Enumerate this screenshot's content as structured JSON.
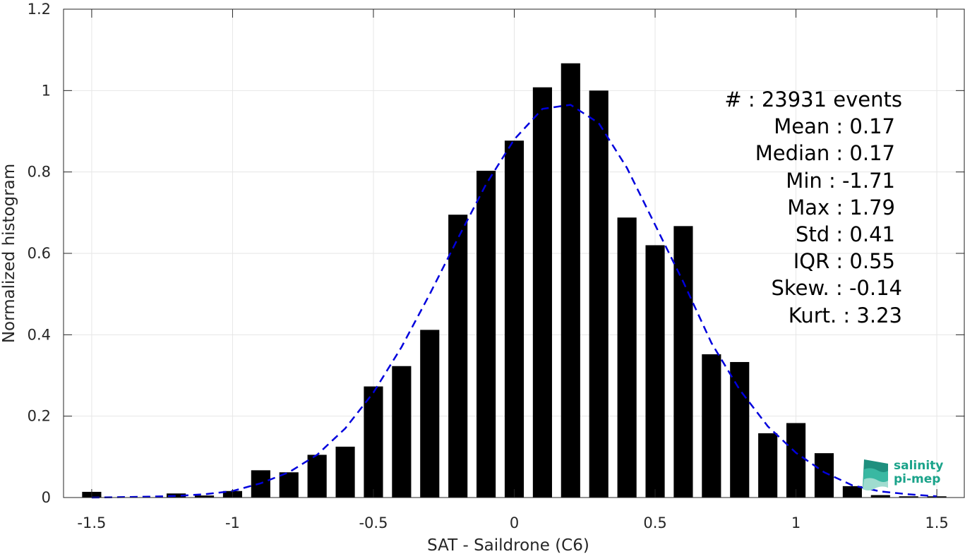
{
  "chart_data": {
    "type": "bar",
    "xlabel": "SAT - Saildrone (C6)",
    "ylabel": "Normalized histogram",
    "xlim": [
      -1.6,
      1.6
    ],
    "ylim": [
      0,
      1.2
    ],
    "xticks": [
      -1.5,
      -1,
      -0.5,
      0,
      0.5,
      1,
      1.5
    ],
    "xtick_labels": [
      "-1.5",
      "-1",
      "-0.5",
      "0",
      "0.5",
      "1",
      "1.5"
    ],
    "yticks": [
      0,
      0.2,
      0.4,
      0.6,
      0.8,
      1,
      1.2
    ],
    "ytick_labels": [
      "0",
      "0.2",
      "0.4",
      "0.6",
      "0.8",
      "1",
      "1.2"
    ],
    "grid": true,
    "bin_width": 0.1,
    "bar_color": "#000000",
    "bins": [
      {
        "x": -1.5,
        "y": 0.014
      },
      {
        "x": -1.4,
        "y": 0.0
      },
      {
        "x": -1.3,
        "y": 0.0
      },
      {
        "x": -1.2,
        "y": 0.01
      },
      {
        "x": -1.1,
        "y": 0.005
      },
      {
        "x": -1.0,
        "y": 0.016
      },
      {
        "x": -0.9,
        "y": 0.067
      },
      {
        "x": -0.8,
        "y": 0.062
      },
      {
        "x": -0.7,
        "y": 0.105
      },
      {
        "x": -0.6,
        "y": 0.125
      },
      {
        "x": -0.5,
        "y": 0.273
      },
      {
        "x": -0.4,
        "y": 0.323
      },
      {
        "x": -0.3,
        "y": 0.412
      },
      {
        "x": -0.2,
        "y": 0.695
      },
      {
        "x": -0.1,
        "y": 0.803
      },
      {
        "x": 0.0,
        "y": 0.877
      },
      {
        "x": 0.1,
        "y": 1.008
      },
      {
        "x": 0.2,
        "y": 1.067
      },
      {
        "x": 0.3,
        "y": 1.0
      },
      {
        "x": 0.4,
        "y": 0.688
      },
      {
        "x": 0.5,
        "y": 0.62
      },
      {
        "x": 0.6,
        "y": 0.667
      },
      {
        "x": 0.7,
        "y": 0.352
      },
      {
        "x": 0.8,
        "y": 0.333
      },
      {
        "x": 0.9,
        "y": 0.158
      },
      {
        "x": 1.0,
        "y": 0.183
      },
      {
        "x": 1.1,
        "y": 0.109
      },
      {
        "x": 1.2,
        "y": 0.028
      },
      {
        "x": 1.3,
        "y": 0.006
      },
      {
        "x": 1.4,
        "y": 0.003
      },
      {
        "x": 1.5,
        "y": 0.003
      }
    ],
    "fit_curve": {
      "style": "dashed",
      "color": "#0000dd",
      "points": [
        {
          "x": -1.5,
          "y": 0.0
        },
        {
          "x": -1.4,
          "y": 0.001
        },
        {
          "x": -1.3,
          "y": 0.002
        },
        {
          "x": -1.2,
          "y": 0.004
        },
        {
          "x": -1.1,
          "y": 0.008
        },
        {
          "x": -1.0,
          "y": 0.016
        },
        {
          "x": -0.9,
          "y": 0.035
        },
        {
          "x": -0.8,
          "y": 0.062
        },
        {
          "x": -0.7,
          "y": 0.105
        },
        {
          "x": -0.6,
          "y": 0.17
        },
        {
          "x": -0.5,
          "y": 0.258
        },
        {
          "x": -0.4,
          "y": 0.37
        },
        {
          "x": -0.3,
          "y": 0.5
        },
        {
          "x": -0.2,
          "y": 0.637
        },
        {
          "x": -0.1,
          "y": 0.77
        },
        {
          "x": 0.0,
          "y": 0.88
        },
        {
          "x": 0.1,
          "y": 0.955
        },
        {
          "x": 0.2,
          "y": 0.965
        },
        {
          "x": 0.3,
          "y": 0.92
        },
        {
          "x": 0.4,
          "y": 0.81
        },
        {
          "x": 0.5,
          "y": 0.67
        },
        {
          "x": 0.6,
          "y": 0.53
        },
        {
          "x": 0.7,
          "y": 0.38
        },
        {
          "x": 0.8,
          "y": 0.265
        },
        {
          "x": 0.9,
          "y": 0.175
        },
        {
          "x": 1.0,
          "y": 0.11
        },
        {
          "x": 1.1,
          "y": 0.062
        },
        {
          "x": 1.2,
          "y": 0.03
        },
        {
          "x": 1.3,
          "y": 0.015
        },
        {
          "x": 1.4,
          "y": 0.008
        },
        {
          "x": 1.5,
          "y": 0.003
        }
      ]
    },
    "stats": [
      "#  : 23931 events",
      "Mean : 0.17",
      "Median : 0.17",
      "Min : -1.71",
      "Max : 1.79",
      "Std : 0.41",
      "IQR : 0.55",
      "Skew. : -0.14",
      "Kurt. : 3.23"
    ]
  },
  "logo": {
    "line1": "salinity",
    "line2": "pi-mep",
    "color": "#1aa38a"
  }
}
